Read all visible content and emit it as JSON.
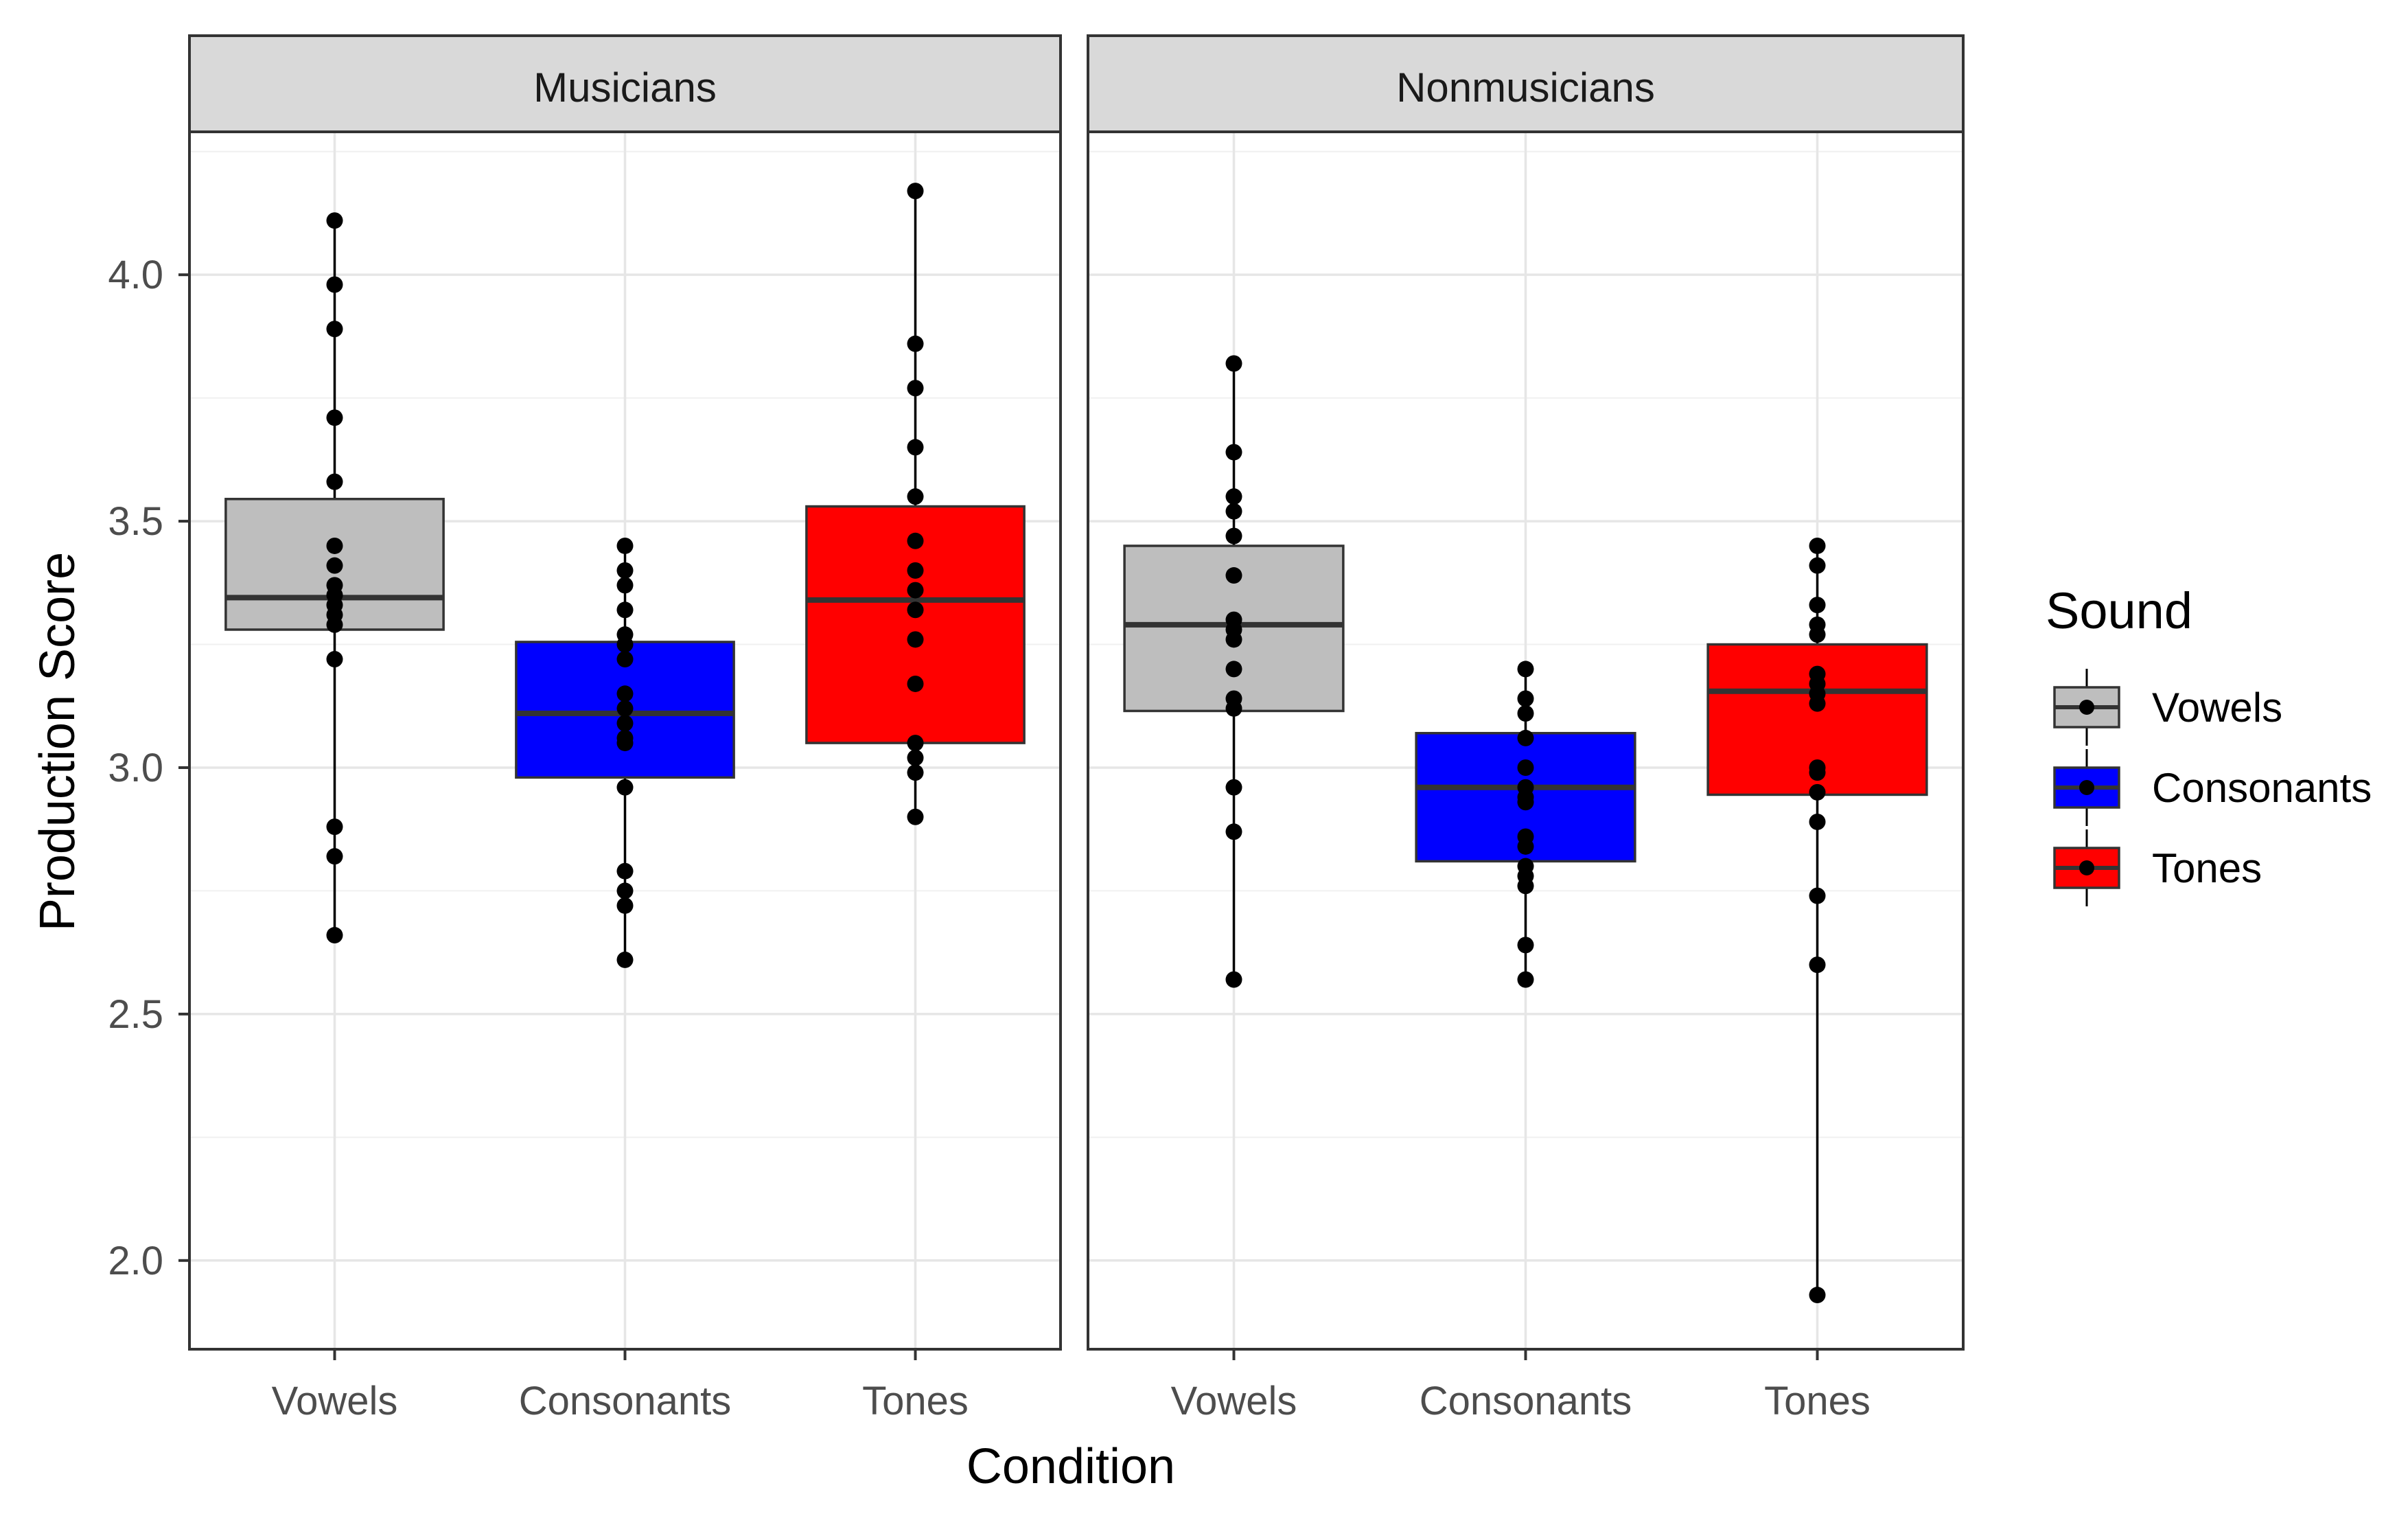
{
  "chart_data": {
    "type": "boxplot",
    "xlabel": "Condition",
    "ylabel": "Production Score",
    "ylim": [
      1.82,
      4.29
    ],
    "y_ticks": [
      {
        "value": 2.0,
        "label": "2.0"
      },
      {
        "value": 2.5,
        "label": "2.5"
      },
      {
        "value": 3.0,
        "label": "3.0"
      },
      {
        "value": 3.5,
        "label": "3.5"
      },
      {
        "value": 4.0,
        "label": "4.0"
      }
    ],
    "categories": [
      "Vowels",
      "Consonants",
      "Tones"
    ],
    "legend": {
      "title": "Sound",
      "position": "right",
      "items": [
        {
          "label": "Vowels",
          "color": "#bebebe"
        },
        {
          "label": "Consonants",
          "color": "#0000ff"
        },
        {
          "label": "Tones",
          "color": "#ff0000"
        }
      ]
    },
    "panels": [
      {
        "label": "Musicians",
        "groups": [
          {
            "category": "Vowels",
            "q1": 3.28,
            "median": 3.345,
            "q3": 3.545,
            "points": [
              4.11,
              3.98,
              3.89,
              3.71,
              3.58,
              3.45,
              3.41,
              3.37,
              3.35,
              3.33,
              3.31,
              3.29,
              3.22,
              2.88,
              2.82,
              2.66
            ]
          },
          {
            "category": "Consonants",
            "q1": 2.98,
            "median": 3.11,
            "q3": 3.255,
            "points": [
              3.45,
              3.4,
              3.37,
              3.32,
              3.27,
              3.25,
              3.22,
              3.15,
              3.12,
              3.09,
              3.06,
              3.05,
              2.96,
              2.79,
              2.75,
              2.72,
              2.61
            ]
          },
          {
            "category": "Tones",
            "q1": 3.05,
            "median": 3.34,
            "q3": 3.53,
            "points": [
              4.17,
              3.86,
              3.77,
              3.65,
              3.55,
              3.46,
              3.4,
              3.36,
              3.32,
              3.26,
              3.17,
              3.05,
              3.02,
              2.99,
              2.9
            ]
          }
        ]
      },
      {
        "label": "Nonmusicians",
        "groups": [
          {
            "category": "Vowels",
            "q1": 3.115,
            "median": 3.29,
            "q3": 3.45,
            "points": [
              3.82,
              3.64,
              3.55,
              3.52,
              3.47,
              3.39,
              3.3,
              3.28,
              3.26,
              3.2,
              3.14,
              3.12,
              2.96,
              2.87,
              2.57
            ]
          },
          {
            "category": "Consonants",
            "q1": 2.81,
            "median": 2.96,
            "q3": 3.07,
            "points": [
              3.2,
              3.14,
              3.11,
              3.06,
              3.0,
              2.96,
              2.94,
              2.93,
              2.86,
              2.84,
              2.8,
              2.78,
              2.76,
              2.64,
              2.57
            ]
          },
          {
            "category": "Tones",
            "q1": 2.945,
            "median": 3.155,
            "q3": 3.25,
            "points": [
              3.45,
              3.41,
              3.33,
              3.29,
              3.27,
              3.19,
              3.17,
              3.15,
              3.13,
              3.0,
              2.99,
              2.95,
              2.89,
              2.74,
              2.6,
              1.93
            ]
          }
        ]
      }
    ]
  }
}
